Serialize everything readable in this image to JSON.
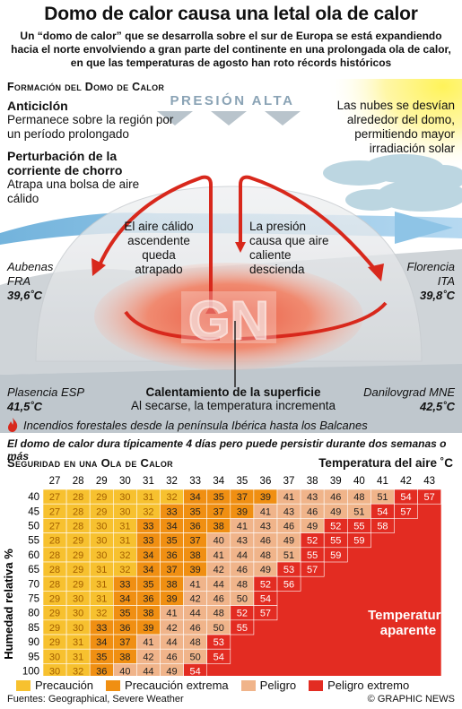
{
  "header": {
    "title": "Domo de calor causa una letal ola de calor",
    "subtitle": "Un “domo de calor” que se desarrolla sobre el sur de Europa se está expandiendo hacia el norte envolviendo a gran parte del continente en una prolongada ola de calor, en que las temperaturas de agosto han roto récords históricos"
  },
  "diagram": {
    "heading": "Formación del Domo de Calor",
    "pressure_label": "PRESIÓN ALTA",
    "anticyclone": {
      "title": "Anticiclón",
      "text": "Permanece sobre la región por un período prolongado"
    },
    "jetstream": {
      "title": "Perturbación de la corriente de chorro",
      "text": "Atrapa una bolsa de aire cálido"
    },
    "clouds_text": "Las nubes se desvían alrededor del domo, permitiendo mayor irradiación solar",
    "left_arrow_text": "El aire cálido ascendente queda atrapado",
    "right_arrow_text": "La presión causa que aire caliente descienda",
    "surface_title": "Calentamiento de la superficie",
    "surface_text": "Al secarse, la temperatura incrementa",
    "watermark": "GN",
    "cities": [
      {
        "name": "Aubenas",
        "country": "FRA",
        "temp": "39,6˚C"
      },
      {
        "name": "Florencia",
        "country": "ITA",
        "temp": "39,8˚C"
      },
      {
        "name": "Plasencia ESP",
        "country": "",
        "temp": "41,5˚C"
      },
      {
        "name": "Danilovgrad MNE",
        "country": "",
        "temp": "42,5˚C"
      }
    ],
    "fires_text": "Incendios forestales desde la península Ibérica hasta los Balcanes",
    "duration_text": "El domo de calor dura típicamente 4 días pero puede persistir durante dos semanas o más"
  },
  "chart_data": {
    "type": "heatmap",
    "title": "Seguridad en una Ola de Calor",
    "xlabel": "Temperatura del aire ˚C",
    "ylabel": "Humedad relativa %",
    "x": [
      27,
      28,
      29,
      30,
      31,
      32,
      33,
      34,
      35,
      36,
      37,
      38,
      39,
      40,
      41,
      42,
      43
    ],
    "y": [
      40,
      45,
      50,
      55,
      60,
      65,
      70,
      75,
      80,
      85,
      90,
      95,
      100
    ],
    "values": [
      [
        27,
        28,
        29,
        30,
        31,
        32,
        34,
        35,
        37,
        39,
        41,
        43,
        46,
        48,
        51,
        54,
        57
      ],
      [
        27,
        28,
        29,
        30,
        32,
        33,
        35,
        37,
        39,
        41,
        43,
        46,
        49,
        51,
        54,
        57,
        null
      ],
      [
        27,
        28,
        30,
        31,
        33,
        34,
        36,
        38,
        41,
        43,
        46,
        49,
        52,
        55,
        58,
        null,
        null
      ],
      [
        28,
        29,
        30,
        31,
        33,
        35,
        37,
        40,
        43,
        46,
        49,
        52,
        55,
        59,
        null,
        null,
        null
      ],
      [
        28,
        29,
        30,
        32,
        34,
        36,
        38,
        41,
        44,
        48,
        51,
        55,
        59,
        null,
        null,
        null,
        null
      ],
      [
        28,
        29,
        31,
        32,
        34,
        37,
        39,
        42,
        46,
        49,
        53,
        57,
        null,
        null,
        null,
        null,
        null
      ],
      [
        28,
        29,
        31,
        33,
        35,
        38,
        41,
        44,
        48,
        52,
        56,
        null,
        null,
        null,
        null,
        null,
        null
      ],
      [
        29,
        30,
        31,
        34,
        36,
        39,
        42,
        46,
        50,
        54,
        null,
        null,
        null,
        null,
        null,
        null,
        null
      ],
      [
        29,
        30,
        32,
        35,
        38,
        41,
        44,
        48,
        52,
        57,
        null,
        null,
        null,
        null,
        null,
        null,
        null
      ],
      [
        29,
        30,
        33,
        36,
        39,
        42,
        46,
        50,
        55,
        null,
        null,
        null,
        null,
        null,
        null,
        null,
        null
      ],
      [
        29,
        31,
        34,
        37,
        41,
        44,
        48,
        53,
        null,
        null,
        null,
        null,
        null,
        null,
        null,
        null,
        null
      ],
      [
        30,
        31,
        35,
        38,
        42,
        46,
        50,
        54,
        null,
        null,
        null,
        null,
        null,
        null,
        null,
        null,
        null
      ],
      [
        30,
        32,
        36,
        40,
        44,
        49,
        54,
        null,
        null,
        null,
        null,
        null,
        null,
        null,
        null,
        null,
        null
      ]
    ],
    "categories": [
      {
        "label": "Precaución",
        "color": "#f7c12f",
        "max": 32
      },
      {
        "label": "Precaución extrema",
        "color": "#f08f12",
        "max": 39
      },
      {
        "label": "Peligro",
        "color": "#f0b48a",
        "max": 51
      },
      {
        "label": "Peligro extremo",
        "color": "#e32c22",
        "max": 99
      }
    ],
    "extreme_label": "Temperatura aparente"
  },
  "footer": {
    "sources": "Fuentes: Geographical, Severe Weather",
    "credit": "© GRAPHIC NEWS"
  }
}
